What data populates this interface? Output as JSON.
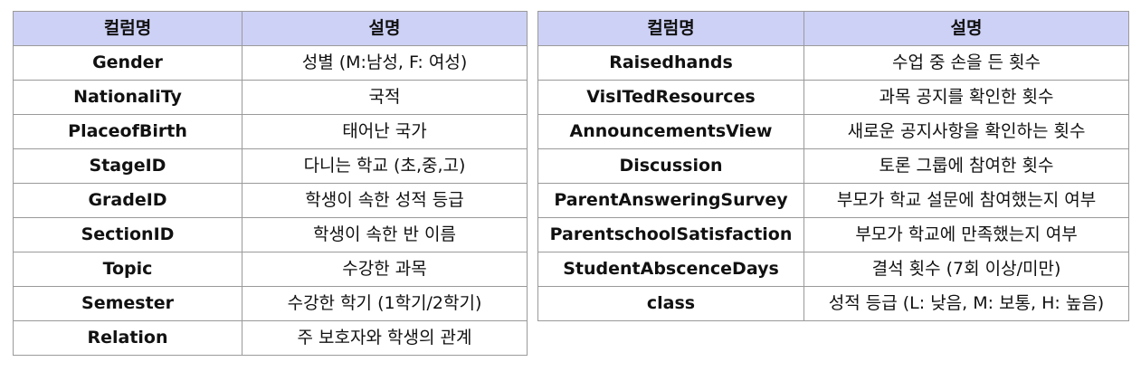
{
  "left_table": {
    "headers": {
      "name": "컬럼명",
      "desc": "설명"
    },
    "rows": [
      {
        "name": "Gender",
        "desc": "성별 (M:남성, F: 여성)"
      },
      {
        "name": "NationaliTy",
        "desc": "국적"
      },
      {
        "name": "PlaceofBirth",
        "desc": "태어난 국가"
      },
      {
        "name": "StageID",
        "desc": "다니는 학교 (초,중,고)"
      },
      {
        "name": "GradeID",
        "desc": "학생이 속한 성적 등급"
      },
      {
        "name": "SectionID",
        "desc": "학생이 속한 반 이름"
      },
      {
        "name": "Topic",
        "desc": "수강한 과목"
      },
      {
        "name": "Semester",
        "desc": "수강한 학기 (1학기/2학기)"
      },
      {
        "name": "Relation",
        "desc": "주 보호자와 학생의 관계"
      }
    ]
  },
  "right_table": {
    "headers": {
      "name": "컬럼명",
      "desc": "설명"
    },
    "rows": [
      {
        "name": "Raisedhands",
        "desc": "수업 중 손을 든 횟수"
      },
      {
        "name": "VisITedResources",
        "desc": "과목 공지를 확인한 횟수"
      },
      {
        "name": "AnnouncementsView",
        "desc": "새로운 공지사항을 확인하는 횟수"
      },
      {
        "name": "Discussion",
        "desc": "토론 그룹에 참여한 횟수"
      },
      {
        "name": "ParentAnsweringSurvey",
        "desc": "부모가 학교 설문에 참여했는지 여부"
      },
      {
        "name": "ParentschoolSatisfaction",
        "desc": "부모가 학교에 만족했는지 여부"
      },
      {
        "name": "StudentAbscenceDays",
        "desc": "결석 횟수 (7회 이상/미만)"
      },
      {
        "name": "class",
        "desc": "성적 등급 (L: 낮음, M: 보통, H: 높음)"
      }
    ]
  }
}
